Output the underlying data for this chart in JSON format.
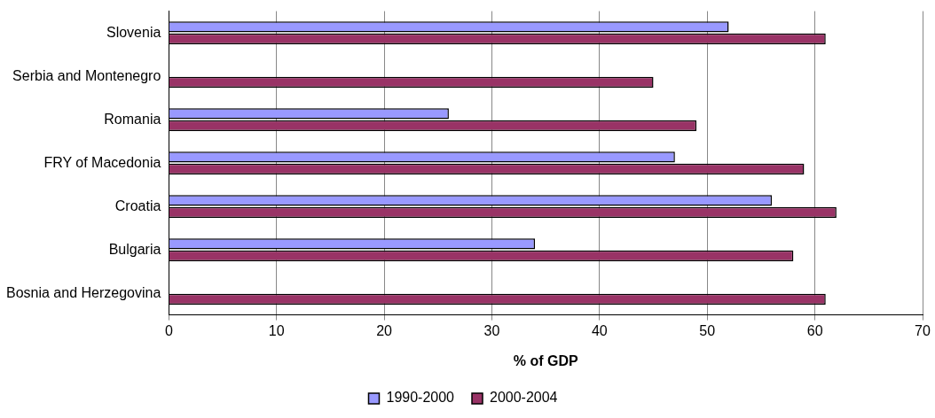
{
  "chart_data": {
    "type": "bar",
    "orientation": "horizontal",
    "xlabel": "% of GDP",
    "categories": [
      "Slovenia",
      "Serbia and Montenegro",
      "Romania",
      "FRY of Macedonia",
      "Croatia",
      "Bulgaria",
      "Bosnia and Herzegovina"
    ],
    "series": [
      {
        "name": "1990-2000",
        "color": "#9999ff",
        "values": [
          52,
          null,
          26,
          47,
          56,
          34,
          null
        ]
      },
      {
        "name": "2000-2004",
        "color": "#993366",
        "values": [
          61,
          45,
          49,
          59,
          62,
          58,
          61
        ]
      }
    ],
    "xlim": [
      0,
      70
    ],
    "xticks": [
      0,
      10,
      20,
      30,
      40,
      50,
      60,
      70
    ],
    "grid": "x",
    "legend": "bottom"
  }
}
